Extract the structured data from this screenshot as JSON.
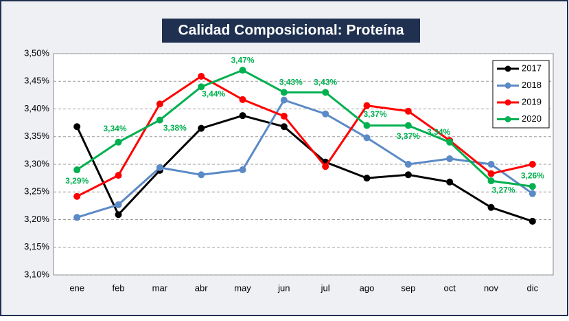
{
  "chart_data": {
    "type": "line",
    "title": "Calidad Composicional: Proteína",
    "categories": [
      "ene",
      "feb",
      "mar",
      "abr",
      "may",
      "jun",
      "jul",
      "ago",
      "sep",
      "oct",
      "nov",
      "dic"
    ],
    "ylim": [
      3.1,
      3.5
    ],
    "yticks": [
      {
        "value": 3.1,
        "label": "3,10%"
      },
      {
        "value": 3.15,
        "label": "3,15%"
      },
      {
        "value": 3.2,
        "label": "3,20%"
      },
      {
        "value": 3.25,
        "label": "3,25%"
      },
      {
        "value": 3.3,
        "label": "3,30%"
      },
      {
        "value": 3.35,
        "label": "3,35%"
      },
      {
        "value": 3.4,
        "label": "3,40%"
      },
      {
        "value": 3.45,
        "label": "3,45%"
      },
      {
        "value": 3.5,
        "label": "3,50%"
      }
    ],
    "grid": true,
    "legend": "top-right",
    "series": [
      {
        "name": "2017",
        "color": "#000000",
        "values": [
          3.368,
          3.209,
          3.289,
          3.365,
          3.388,
          3.368,
          3.304,
          3.275,
          3.281,
          3.268,
          3.222,
          3.197
        ]
      },
      {
        "name": "2018",
        "color": "#5b8ac6",
        "values": [
          3.204,
          3.227,
          3.294,
          3.281,
          3.29,
          3.416,
          3.391,
          3.348,
          3.3,
          3.31,
          3.3,
          3.247
        ]
      },
      {
        "name": "2019",
        "color": "#ff0000",
        "values": [
          3.242,
          3.28,
          3.409,
          3.459,
          3.417,
          3.387,
          3.296,
          3.406,
          3.396,
          3.343,
          3.283,
          3.3
        ]
      },
      {
        "name": "2020",
        "color": "#00b050",
        "values": [
          3.29,
          3.34,
          3.38,
          3.44,
          3.47,
          3.43,
          3.43,
          3.37,
          3.37,
          3.34,
          3.27,
          3.26
        ],
        "value_labels": [
          "3,29%",
          "3,34%",
          "3,38%",
          "3,44%",
          "3,47%",
          "3,43%",
          "3,43%",
          "3,37%",
          "3,37%",
          "3,34%",
          "3,27%",
          "3,26%"
        ]
      }
    ]
  }
}
